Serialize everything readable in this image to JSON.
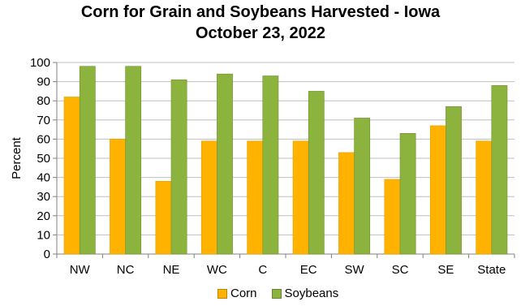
{
  "chart_data": {
    "type": "bar",
    "title": "Corn for Grain and Soybeans Harvested - Iowa",
    "subtitle": "October 23, 2022",
    "xlabel": "",
    "ylabel": "Percent",
    "ylim": [
      0,
      100
    ],
    "yticks": [
      0,
      10,
      20,
      30,
      40,
      50,
      60,
      70,
      80,
      90,
      100
    ],
    "grid": true,
    "legend_position": "bottom",
    "categories": [
      "NW",
      "NC",
      "NE",
      "WC",
      "C",
      "EC",
      "SW",
      "SC",
      "SE",
      "State"
    ],
    "series": [
      {
        "name": "Corn",
        "color": "#FFB300",
        "values": [
          82,
          60,
          38,
          59,
          59,
          59,
          53,
          39,
          67,
          59
        ]
      },
      {
        "name": "Soybeans",
        "color": "#8DB33F",
        "values": [
          98,
          98,
          91,
          94,
          93,
          85,
          71,
          63,
          77,
          88
        ]
      }
    ]
  }
}
